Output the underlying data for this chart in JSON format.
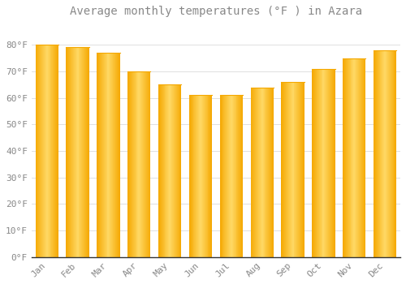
{
  "title": "Average monthly temperatures (°F ) in Azara",
  "months": [
    "Jan",
    "Feb",
    "Mar",
    "Apr",
    "May",
    "Jun",
    "Jul",
    "Aug",
    "Sep",
    "Oct",
    "Nov",
    "Dec"
  ],
  "values": [
    80,
    79,
    77,
    70,
    65,
    61,
    61,
    64,
    66,
    71,
    75,
    78
  ],
  "bar_color_center": "#FFD966",
  "bar_color_edge": "#F5A800",
  "background_color": "#FFFFFF",
  "grid_color": "#E0E0E0",
  "text_color": "#888888",
  "axis_color": "#333333",
  "ylim": [
    0,
    88
  ],
  "ytick_step": 10,
  "title_fontsize": 10,
  "tick_fontsize": 8,
  "bar_width": 0.75
}
